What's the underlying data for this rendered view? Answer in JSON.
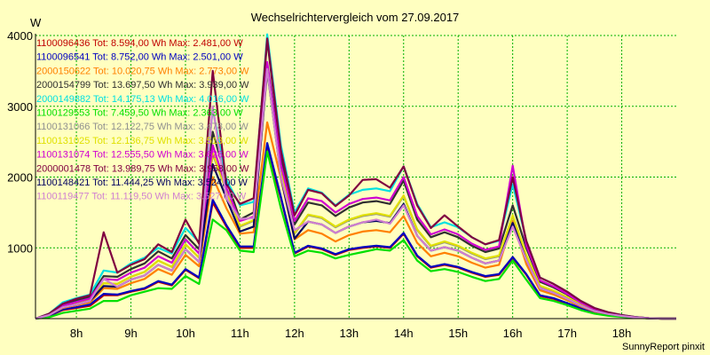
{
  "chart_data": {
    "type": "line",
    "title": "Wechselrichtervergleich vom 27.09.2017",
    "ylabel": "W",
    "xlabel": "",
    "ylim": [
      0,
      4000
    ],
    "xlim": [
      7.25,
      19.0
    ],
    "y_ticks": [
      {
        "value": 1000,
        "label": "1000"
      },
      {
        "value": 2000,
        "label": "2000"
      },
      {
        "value": 3000,
        "label": "3000"
      },
      {
        "value": 4000,
        "label": "4000"
      }
    ],
    "x_ticks": [
      {
        "value": 8,
        "label": "8h"
      },
      {
        "value": 9,
        "label": "9h"
      },
      {
        "value": 10,
        "label": "10h"
      },
      {
        "value": 11,
        "label": "11h"
      },
      {
        "value": 12,
        "label": "12h"
      },
      {
        "value": 13,
        "label": "13h"
      },
      {
        "value": 14,
        "label": "14h"
      },
      {
        "value": 15,
        "label": "15h"
      },
      {
        "value": 16,
        "label": "16h"
      },
      {
        "value": 17,
        "label": "17h"
      },
      {
        "value": 18,
        "label": "18h"
      }
    ],
    "grid": true,
    "legend_position": "top-left",
    "x": [
      7.25,
      7.5,
      7.75,
      8.0,
      8.25,
      8.5,
      8.75,
      9.0,
      9.25,
      9.5,
      9.75,
      10.0,
      10.25,
      10.5,
      10.75,
      11.0,
      11.25,
      11.5,
      11.75,
      12.0,
      12.25,
      12.5,
      12.75,
      13.0,
      13.25,
      13.5,
      13.75,
      14.0,
      14.25,
      14.5,
      14.75,
      15.0,
      15.25,
      15.5,
      15.75,
      16.0,
      16.25,
      16.5,
      16.75,
      17.0,
      17.25,
      17.5,
      17.75,
      18.0,
      18.25,
      18.5,
      18.75,
      19.0
    ],
    "series": [
      {
        "name": "1100096436 Tot: 8.594,00 Wh Max: 2.481,00 W",
        "color": "#c00000",
        "values": [
          0,
          40,
          120,
          150,
          180,
          330,
          330,
          380,
          420,
          520,
          470,
          690,
          570,
          1640,
          1300,
          1000,
          1000,
          2400,
          1700,
          920,
          1020,
          980,
          900,
          970,
          1000,
          1020,
          1000,
          1200,
          880,
          720,
          760,
          720,
          650,
          590,
          620,
          860,
          620,
          320,
          280,
          210,
          140,
          80,
          50,
          30,
          15,
          5,
          0,
          0
        ]
      },
      {
        "name": "1100096541 Tot: 8.752,00 Wh Max: 2.501,00 W",
        "color": "#0000c0",
        "values": [
          0,
          40,
          130,
          160,
          200,
          350,
          340,
          390,
          430,
          530,
          480,
          700,
          580,
          1680,
          1320,
          1020,
          1020,
          2480,
          1720,
          930,
          1030,
          990,
          910,
          980,
          1010,
          1030,
          1010,
          1210,
          890,
          730,
          770,
          730,
          660,
          600,
          630,
          870,
          630,
          330,
          290,
          220,
          150,
          85,
          55,
          35,
          15,
          5,
          0,
          0
        ]
      },
      {
        "name": "2000150622 Tot: 10.020,75 Wh Max: 2.773,00 W",
        "color": "#ff8000",
        "values": [
          0,
          50,
          150,
          190,
          230,
          430,
          420,
          500,
          560,
          700,
          620,
          900,
          740,
          2000,
          1560,
          1200,
          1220,
          2773,
          1980,
          1120,
          1250,
          1200,
          1090,
          1180,
          1230,
          1250,
          1220,
          1450,
          1070,
          880,
          930,
          880,
          790,
          720,
          760,
          1380,
          770,
          400,
          340,
          260,
          170,
          100,
          60,
          35,
          15,
          5,
          0,
          0
        ]
      },
      {
        "name": "2000154799 Tot: 13.697,50 Wh Max: 3.939,00 W",
        "color": "#303030",
        "values": [
          0,
          60,
          200,
          260,
          310,
          600,
          590,
          700,
          780,
          950,
          850,
          1180,
          980,
          2640,
          1960,
          1400,
          1500,
          3939,
          2300,
          1330,
          1640,
          1600,
          1450,
          1570,
          1640,
          1660,
          1620,
          1950,
          1400,
          1150,
          1220,
          1150,
          1030,
          940,
          990,
          1600,
          1000,
          520,
          440,
          340,
          220,
          130,
          80,
          45,
          20,
          6,
          0,
          0
        ]
      },
      {
        "name": "2000149882 Tot: 14.175,13 Wh Max: 4.016,00 W",
        "color": "#00e0e0",
        "values": [
          0,
          70,
          230,
          290,
          340,
          680,
          650,
          780,
          860,
          1000,
          920,
          1280,
          1080,
          2960,
          1960,
          1600,
          1650,
          4016,
          2450,
          1500,
          1840,
          1780,
          1600,
          1750,
          1820,
          1840,
          1800,
          2150,
          1620,
          1290,
          1360,
          1290,
          1150,
          1050,
          1100,
          1900,
          1100,
          580,
          490,
          380,
          250,
          150,
          90,
          50,
          22,
          6,
          0,
          0
        ]
      },
      {
        "name": "1100129553 Tot: 7.459,50 Wh Max: 2.363,00 W",
        "color": "#00e000",
        "values": [
          0,
          20,
          80,
          110,
          140,
          250,
          250,
          330,
          380,
          430,
          420,
          600,
          490,
          1400,
          1250,
          960,
          940,
          2363,
          1560,
          880,
          960,
          930,
          850,
          900,
          940,
          980,
          960,
          1110,
          820,
          670,
          700,
          660,
          590,
          530,
          560,
          820,
          550,
          290,
          250,
          190,
          120,
          70,
          40,
          25,
          10,
          4,
          0,
          0
        ]
      },
      {
        "name": "1100131066 Tot: 12.122,75 Wh Max: 3.478,00 W",
        "color": "#909090",
        "values": [
          0,
          55,
          170,
          220,
          270,
          500,
          490,
          590,
          660,
          820,
          730,
          1050,
          860,
          2320,
          1800,
          1300,
          1380,
          3478,
          2100,
          1200,
          1460,
          1420,
          1290,
          1390,
          1450,
          1480,
          1440,
          1730,
          1250,
          1020,
          1080,
          1020,
          920,
          840,
          880,
          1450,
          890,
          460,
          390,
          300,
          195,
          115,
          70,
          40,
          18,
          5,
          0,
          0
        ]
      },
      {
        "name": "1100131025 Tot: 12.136,75 Wh Max: 3.513,00 W",
        "color": "#e0e000",
        "values": [
          0,
          55,
          170,
          220,
          270,
          500,
          490,
          590,
          660,
          820,
          730,
          1050,
          860,
          2340,
          1810,
          1310,
          1390,
          3513,
          2110,
          1210,
          1470,
          1430,
          1300,
          1400,
          1460,
          1490,
          1450,
          1740,
          1260,
          1030,
          1090,
          1030,
          930,
          850,
          890,
          1460,
          900,
          465,
          395,
          305,
          198,
          117,
          71,
          41,
          18,
          5,
          0,
          0
        ]
      },
      {
        "name": "1100131074 Tot: 12.555,50 Wh Max: 3.626,00 W",
        "color": "#d000d0",
        "values": [
          0,
          58,
          180,
          235,
          285,
          560,
          545,
          650,
          720,
          880,
          790,
          1120,
          920,
          2450,
          1850,
          1380,
          1440,
          3626,
          2180,
          1380,
          1700,
          1660,
          1500,
          1620,
          1690,
          1710,
          1670,
          2000,
          1450,
          1190,
          1260,
          1190,
          1060,
          970,
          1020,
          2160,
          1040,
          540,
          455,
          350,
          225,
          135,
          82,
          46,
          20,
          6,
          0,
          0
        ]
      },
      {
        "name": "2000001478 Tot: 13.989,75 Wh Max: 3.958,00 W",
        "color": "#800040",
        "values": [
          0,
          70,
          210,
          280,
          330,
          1220,
          650,
          760,
          840,
          1050,
          940,
          1400,
          1060,
          3500,
          1900,
          1620,
          1700,
          3958,
          2380,
          1460,
          1820,
          1770,
          1590,
          1740,
          1960,
          1970,
          1850,
          2150,
          1600,
          1280,
          1460,
          1300,
          1150,
          1050,
          1110,
          2000,
          1100,
          580,
          490,
          380,
          250,
          150,
          90,
          50,
          22,
          6,
          0,
          0
        ]
      },
      {
        "name": "1100148421 Tot: 11.444,25 Wh Max: 3.524,00 W",
        "color": "#000060",
        "values": [
          0,
          50,
          160,
          200,
          250,
          460,
          450,
          550,
          610,
          760,
          680,
          980,
          800,
          2180,
          1700,
          1230,
          1300,
          3524,
          2000,
          1130,
          1370,
          1330,
          1210,
          1300,
          1360,
          1380,
          1350,
          1620,
          1170,
          960,
          1010,
          960,
          860,
          780,
          820,
          1350,
          830,
          430,
          365,
          280,
          182,
          107,
          65,
          37,
          16,
          5,
          0,
          0
        ]
      },
      {
        "name": "1100119477 Tot: 11.119,50 Wh Max: 3.527,00 W",
        "color": "#d080d0",
        "values": [
          0,
          50,
          160,
          200,
          250,
          560,
          450,
          550,
          610,
          760,
          680,
          980,
          800,
          3000,
          1700,
          1410,
          1420,
          3527,
          2000,
          1250,
          1370,
          1330,
          1210,
          1300,
          1360,
          1400,
          1340,
          1600,
          1170,
          960,
          1010,
          960,
          860,
          780,
          820,
          1300,
          830,
          430,
          365,
          280,
          182,
          107,
          65,
          37,
          16,
          5,
          0,
          0
        ]
      }
    ]
  },
  "credit": "SunnyReport pinxit"
}
